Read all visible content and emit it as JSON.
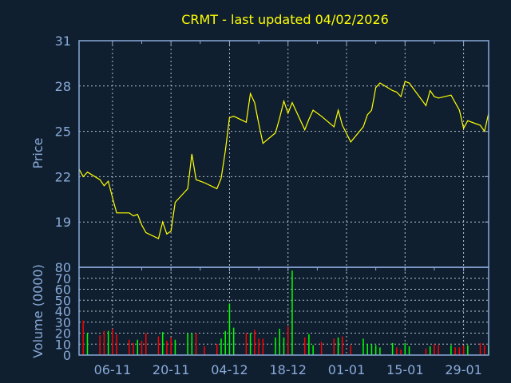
{
  "chart_data": [
    {
      "type": "line",
      "title": "CRMT - last updated 04/02/2026",
      "ylabel": "Price",
      "xlabel": "",
      "ylim": [
        16,
        31
      ],
      "yticks": [
        19,
        22,
        25,
        28,
        31
      ],
      "xlim": [
        "2025-10-29",
        "2026-02-04"
      ],
      "xticks": [
        {
          "date": "2025-11-06",
          "label": "06-11"
        },
        {
          "date": "2025-11-20",
          "label": "20-11"
        },
        {
          "date": "2025-12-04",
          "label": "04-12"
        },
        {
          "date": "2025-12-18",
          "label": "18-12"
        },
        {
          "date": "2026-01-01",
          "label": "01-01"
        },
        {
          "date": "2026-01-15",
          "label": "15-01"
        },
        {
          "date": "2026-01-29",
          "label": "29-01"
        }
      ],
      "grid": true,
      "colors": {
        "line": "#ffff00",
        "background": "#0f1f30",
        "axis": "#8aaad8",
        "grid": "#b8c0c8",
        "title": "#ffff00"
      },
      "series": [
        {
          "points": [
            [
              "2025-10-29",
              22.5
            ],
            [
              "2025-10-30",
              22.0
            ],
            [
              "2025-10-31",
              22.3
            ],
            [
              "2025-11-03",
              21.8
            ],
            [
              "2025-11-04",
              21.4
            ],
            [
              "2025-11-05",
              21.7
            ],
            [
              "2025-11-06",
              20.6
            ],
            [
              "2025-11-07",
              19.6
            ],
            [
              "2025-11-10",
              19.6
            ],
            [
              "2025-11-11",
              19.4
            ],
            [
              "2025-11-12",
              19.5
            ],
            [
              "2025-11-13",
              18.8
            ],
            [
              "2025-11-14",
              18.3
            ],
            [
              "2025-11-17",
              17.9
            ],
            [
              "2025-11-18",
              19.0
            ],
            [
              "2025-11-19",
              18.2
            ],
            [
              "2025-11-20",
              18.4
            ],
            [
              "2025-11-21",
              20.3
            ],
            [
              "2025-11-24",
              21.2
            ],
            [
              "2025-11-25",
              23.5
            ],
            [
              "2025-11-26",
              21.8
            ],
            [
              "2025-11-28",
              21.6
            ],
            [
              "2025-12-01",
              21.2
            ],
            [
              "2025-12-02",
              21.9
            ],
            [
              "2025-12-03",
              23.7
            ],
            [
              "2025-12-04",
              25.9
            ],
            [
              "2025-12-05",
              26.0
            ],
            [
              "2025-12-08",
              25.6
            ],
            [
              "2025-12-09",
              27.5
            ],
            [
              "2025-12-10",
              26.9
            ],
            [
              "2025-12-11",
              25.5
            ],
            [
              "2025-12-12",
              24.2
            ],
            [
              "2025-12-15",
              24.9
            ],
            [
              "2025-12-16",
              25.9
            ],
            [
              "2025-12-17",
              27.0
            ],
            [
              "2025-12-18",
              26.2
            ],
            [
              "2025-12-19",
              26.9
            ],
            [
              "2025-12-22",
              25.1
            ],
            [
              "2025-12-23",
              25.8
            ],
            [
              "2025-12-24",
              26.4
            ],
            [
              "2025-12-26",
              26.0
            ],
            [
              "2025-12-29",
              25.3
            ],
            [
              "2025-12-30",
              26.4
            ],
            [
              "2025-12-31",
              25.4
            ],
            [
              "2026-01-02",
              24.3
            ],
            [
              "2026-01-05",
              25.3
            ],
            [
              "2026-01-06",
              26.1
            ],
            [
              "2026-01-07",
              26.4
            ],
            [
              "2026-01-08",
              27.9
            ],
            [
              "2026-01-09",
              28.2
            ],
            [
              "2026-01-12",
              27.7
            ],
            [
              "2026-01-13",
              27.6
            ],
            [
              "2026-01-14",
              27.3
            ],
            [
              "2026-01-15",
              28.3
            ],
            [
              "2026-01-16",
              28.2
            ],
            [
              "2026-01-20",
              26.7
            ],
            [
              "2026-01-21",
              27.7
            ],
            [
              "2026-01-22",
              27.3
            ],
            [
              "2026-01-23",
              27.2
            ],
            [
              "2026-01-26",
              27.4
            ],
            [
              "2026-01-27",
              26.9
            ],
            [
              "2026-01-28",
              26.4
            ],
            [
              "2026-01-29",
              25.2
            ],
            [
              "2026-01-30",
              25.7
            ],
            [
              "2026-02-02",
              25.4
            ],
            [
              "2026-02-03",
              25.0
            ],
            [
              "2026-02-04",
              26.2
            ]
          ]
        }
      ]
    },
    {
      "type": "bar",
      "ylabel": "Volume (0000)",
      "ylim": [
        0,
        80
      ],
      "yticks": [
        0,
        10,
        20,
        30,
        40,
        50,
        60,
        70,
        80
      ],
      "xlim": [
        "2025-10-29",
        "2026-02-04"
      ],
      "grid": true,
      "colors": {
        "up": "#00ff00",
        "down": "#ff0000"
      },
      "bars": [
        [
          "2025-10-30",
          31.5,
          "down"
        ],
        [
          "2025-10-31",
          20,
          "up"
        ],
        [
          "2025-11-03",
          18,
          "down"
        ],
        [
          "2025-11-04",
          22,
          "down"
        ],
        [
          "2025-11-05",
          22,
          "up"
        ],
        [
          "2025-11-06",
          24,
          "down"
        ],
        [
          "2025-11-07",
          19,
          "down"
        ],
        [
          "2025-11-10",
          14,
          "down"
        ],
        [
          "2025-11-11",
          11,
          "down"
        ],
        [
          "2025-11-12",
          14,
          "up"
        ],
        [
          "2025-11-13",
          13,
          "down"
        ],
        [
          "2025-11-14",
          20,
          "down"
        ],
        [
          "2025-11-17",
          17,
          "down"
        ],
        [
          "2025-11-18",
          21,
          "up"
        ],
        [
          "2025-11-19",
          13,
          "down"
        ],
        [
          "2025-11-20",
          16,
          "down"
        ],
        [
          "2025-11-21",
          14,
          "up"
        ],
        [
          "2025-11-24",
          20,
          "up"
        ],
        [
          "2025-11-25",
          20,
          "up"
        ],
        [
          "2025-11-26",
          20,
          "down"
        ],
        [
          "2025-11-28",
          8,
          "down"
        ],
        [
          "2025-12-01",
          10,
          "down"
        ],
        [
          "2025-12-02",
          15,
          "up"
        ],
        [
          "2025-12-03",
          22,
          "up"
        ],
        [
          "2025-12-04",
          47,
          "up"
        ],
        [
          "2025-12-05",
          25,
          "up"
        ],
        [
          "2025-12-08",
          20,
          "down"
        ],
        [
          "2025-12-09",
          20,
          "up"
        ],
        [
          "2025-12-10",
          23,
          "down"
        ],
        [
          "2025-12-11",
          15,
          "down"
        ],
        [
          "2025-12-12",
          15,
          "down"
        ],
        [
          "2025-12-15",
          16,
          "up"
        ],
        [
          "2025-12-16",
          24,
          "up"
        ],
        [
          "2025-12-17",
          16,
          "up"
        ],
        [
          "2025-12-18",
          26,
          "down"
        ],
        [
          "2025-12-19",
          77,
          "up"
        ],
        [
          "2025-12-22",
          16,
          "down"
        ],
        [
          "2025-12-23",
          19,
          "up"
        ],
        [
          "2025-12-24",
          9,
          "up"
        ],
        [
          "2025-12-26",
          12,
          "down"
        ],
        [
          "2025-12-29",
          15,
          "down"
        ],
        [
          "2025-12-30",
          16,
          "up"
        ],
        [
          "2025-12-31",
          17,
          "down"
        ],
        [
          "2026-01-02",
          9,
          "down"
        ],
        [
          "2026-01-05",
          15,
          "up"
        ],
        [
          "2026-01-06",
          10,
          "up"
        ],
        [
          "2026-01-07",
          10,
          "up"
        ],
        [
          "2026-01-08",
          9,
          "up"
        ],
        [
          "2026-01-09",
          7,
          "up"
        ],
        [
          "2026-01-12",
          11,
          "up"
        ],
        [
          "2026-01-13",
          7,
          "down"
        ],
        [
          "2026-01-14",
          5,
          "down"
        ],
        [
          "2026-01-15",
          11,
          "up"
        ],
        [
          "2026-01-16",
          8,
          "up"
        ],
        [
          "2026-01-20",
          6,
          "down"
        ],
        [
          "2026-01-21",
          8,
          "up"
        ],
        [
          "2026-01-22",
          10,
          "down"
        ],
        [
          "2026-01-23",
          9,
          "down"
        ],
        [
          "2026-01-26",
          9,
          "up"
        ],
        [
          "2026-01-27",
          7,
          "down"
        ],
        [
          "2026-01-28",
          7,
          "down"
        ],
        [
          "2026-01-29",
          9,
          "down"
        ],
        [
          "2026-01-30",
          9,
          "up"
        ],
        [
          "2026-02-02",
          11,
          "down"
        ],
        [
          "2026-02-03",
          9,
          "down"
        ],
        [
          "2026-02-04",
          9,
          "up"
        ]
      ]
    }
  ]
}
